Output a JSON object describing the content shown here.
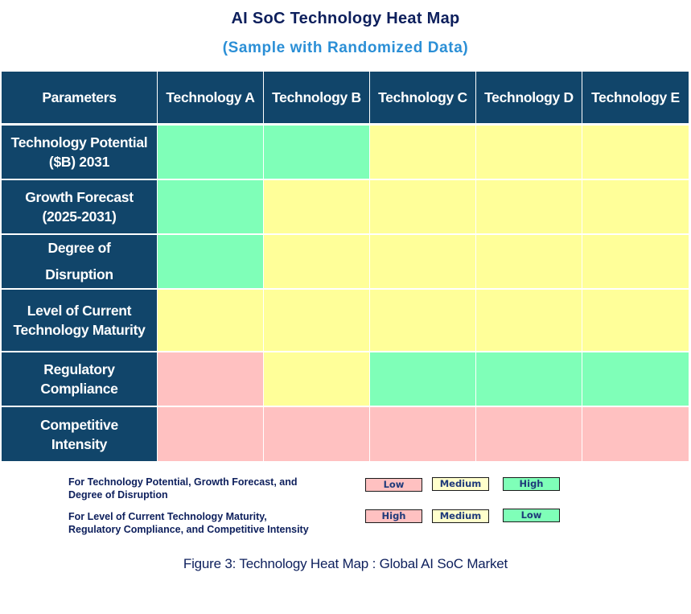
{
  "header": {
    "title": "AI SoC Technology Heat Map",
    "subtitle": "(Sample with Randomized Data)"
  },
  "colors": {
    "header_bg": "#11456a",
    "header_text": "#ffffff",
    "high_green": "#7fffb8",
    "medium_yellow": "#ffff99",
    "low_pink": "#ffc1c1",
    "title": "#0d1f5c",
    "subtitle": "#2b8fd6"
  },
  "table": {
    "corner_label": "Parameters",
    "columns": [
      "Technology A",
      "Technology B",
      "Technology C",
      "Technology D",
      "Technology E"
    ],
    "rows": [
      {
        "label_line1": "Technology Potential",
        "label_line2": "($B) 2031"
      },
      {
        "label_line1": "Growth Forecast",
        "label_line2": "(2025-2031)"
      },
      {
        "label_line1": "Degree of",
        "label_line2": "Disruption"
      },
      {
        "label_line1": "Level of Current",
        "label_line2": "Technology Maturity"
      },
      {
        "label_line1": "Regulatory",
        "label_line2": "Compliance"
      },
      {
        "label_line1": "Competitive",
        "label_line2": "Intensity"
      }
    ]
  },
  "chart_data": {
    "type": "heatmap",
    "title": "AI SoC Technology Heat Map",
    "subtitle": "(Sample with Randomized Data)",
    "x": [
      "Technology A",
      "Technology B",
      "Technology C",
      "Technology D",
      "Technology E"
    ],
    "y": [
      "Technology Potential ($B) 2031",
      "Growth Forecast (2025-2031)",
      "Degree of Disruption",
      "Level of Current Technology Maturity",
      "Regulatory Compliance",
      "Competitive Intensity"
    ],
    "color_values": [
      [
        "green",
        "green",
        "yellow",
        "yellow",
        "yellow"
      ],
      [
        "green",
        "yellow",
        "yellow",
        "yellow",
        "yellow"
      ],
      [
        "green",
        "yellow",
        "yellow",
        "yellow",
        "yellow"
      ],
      [
        "yellow",
        "yellow",
        "yellow",
        "yellow",
        "yellow"
      ],
      [
        "pink",
        "yellow",
        "green",
        "green",
        "green"
      ],
      [
        "pink",
        "pink",
        "pink",
        "pink",
        "pink"
      ]
    ],
    "values": [
      [
        "High",
        "High",
        "Medium",
        "Medium",
        "Medium"
      ],
      [
        "High",
        "Medium",
        "Medium",
        "Medium",
        "Medium"
      ],
      [
        "High",
        "Medium",
        "Medium",
        "Medium",
        "Medium"
      ],
      [
        "Medium",
        "Medium",
        "Medium",
        "Medium",
        "Medium"
      ],
      [
        "High",
        "Medium",
        "Low",
        "Low",
        "Low"
      ],
      [
        "High",
        "High",
        "High",
        "High",
        "High"
      ]
    ],
    "legend": [
      {
        "applies_to": "Technology Potential, Growth Forecast, Degree of Disruption",
        "pink": "Low",
        "yellow": "Medium",
        "green": "High"
      },
      {
        "applies_to": "Level of Current Technology Maturity, Regulatory Compliance, Competitive Intensity",
        "pink": "High",
        "yellow": "Medium",
        "green": "Low"
      }
    ],
    "caption": "Figure 3: Technology Heat Map : Global AI SoC Market"
  },
  "legend": {
    "group1_line1": "For Technology Potential, Growth Forecast, and",
    "group1_line2": "Degree of Disruption",
    "group1_boxes": [
      "Low",
      "Medium",
      "High"
    ],
    "group2_line1": "For Level of Current Technology Maturity,",
    "group2_line2": "Regulatory Compliance, and Competitive Intensity",
    "group2_boxes": [
      "High",
      "Medium",
      "Low"
    ]
  },
  "caption": "Figure 3: Technology Heat Map : Global AI SoC Market"
}
